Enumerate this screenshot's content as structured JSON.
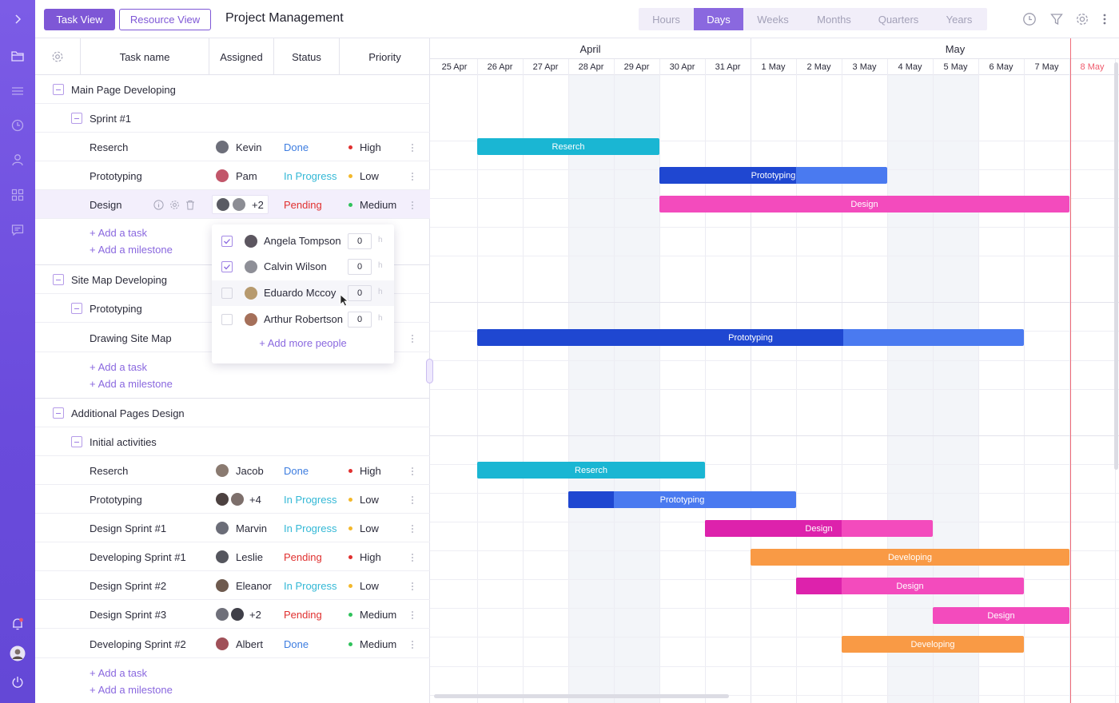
{
  "topbar": {
    "task_view": "Task View",
    "resource_view": "Resource View",
    "title": "Project Management",
    "scales": [
      "Hours",
      "Days",
      "Weeks",
      "Months",
      "Quarters",
      "Years"
    ],
    "active_scale": "Days"
  },
  "columns": {
    "task_name": "Task name",
    "assigned": "Assigned",
    "status": "Status",
    "priority": "Priority"
  },
  "groups": {
    "g1": "Main Page Developing",
    "g1_sub": "Sprint #1",
    "g2": "Site Map Developing",
    "g2_sub": "Prototyping",
    "g3": "Additional Pages Design",
    "g3_sub": "Initial activities"
  },
  "tasks": [
    {
      "name": "Reserch",
      "assignee": "Kevin",
      "status": "Done",
      "priority": "High"
    },
    {
      "name": "Prototyping",
      "assignee": "Pam",
      "status": "In Progress",
      "priority": "Low"
    },
    {
      "name": "Design",
      "assignee": "+2",
      "status": "Pending",
      "priority": "Medium"
    },
    {
      "name": "Drawing Site Map"
    },
    {
      "name": "Reserch",
      "assignee": "Jacob",
      "status": "Done",
      "priority": "High"
    },
    {
      "name": "Prototyping",
      "assignee": "+4",
      "status": "In Progress",
      "priority": "Low"
    },
    {
      "name": "Design Sprint #1",
      "assignee": "Marvin",
      "status": "In Progress",
      "priority": "Low"
    },
    {
      "name": "Developing Sprint #1",
      "assignee": "Leslie",
      "status": "Pending",
      "priority": "High"
    },
    {
      "name": "Design Sprint #2",
      "assignee": "Eleanor",
      "status": "In Progress",
      "priority": "Low"
    },
    {
      "name": "Design Sprint #3",
      "assignee": "+2",
      "status": "Pending",
      "priority": "Medium"
    },
    {
      "name": "Developing Sprint #2",
      "assignee": "Albert",
      "status": "Done",
      "priority": "Medium"
    }
  ],
  "links": {
    "add_task": "Add a task",
    "add_milestone": "Add a milestone",
    "plus": "+"
  },
  "popup": {
    "people": [
      {
        "name": "Angela Tompson",
        "checked": true,
        "hours": "0"
      },
      {
        "name": "Calvin Wilson",
        "checked": true,
        "hours": "0"
      },
      {
        "name": "Eduardo Mccoy",
        "checked": false,
        "hours": "0"
      },
      {
        "name": "Arthur Robertson",
        "checked": false,
        "hours": "0"
      }
    ],
    "unit": "h",
    "add_more": "+ Add more people"
  },
  "timeline": {
    "months": [
      "April",
      "May"
    ],
    "days": [
      "25 Apr",
      "26 Apr",
      "27 Apr",
      "28 Apr",
      "29 Apr",
      "30 Apr",
      "31 Apr",
      "1 May",
      "2 May",
      "3 May",
      "4 May",
      "5 May",
      "6 May",
      "7 May",
      "8 May"
    ],
    "today": "8 May",
    "bars": [
      {
        "label": "Reserch",
        "start": 1,
        "end": 5,
        "progress": 1.0,
        "color": "#1ab6d3",
        "dark": "#1ab6d3"
      },
      {
        "label": "Prototyping",
        "start": 5,
        "end": 10,
        "progress": 0.6,
        "color": "#4a7af0",
        "dark": "#1f47d1"
      },
      {
        "label": "Design",
        "start": 5,
        "end": 14,
        "progress": 0,
        "color": "#f34bbd",
        "dark": "#f34bbd"
      },
      {
        "label": "Prototyping",
        "start": 1,
        "end": 13,
        "progress": 0.67,
        "color": "#4a7af0",
        "dark": "#1f47d1"
      },
      {
        "label": "Reserch",
        "start": 1,
        "end": 6,
        "progress": 1.0,
        "color": "#1ab6d3",
        "dark": "#1ab6d3"
      },
      {
        "label": "Prototyping",
        "start": 3,
        "end": 8,
        "progress": 0.2,
        "color": "#4a7af0",
        "dark": "#1f47d1"
      },
      {
        "label": "Design",
        "start": 6,
        "end": 11,
        "progress": 0.6,
        "color": "#f34bbd",
        "dark": "#dd22ac"
      },
      {
        "label": "Developing",
        "start": 7,
        "end": 14,
        "progress": 0,
        "color": "#f99a45",
        "dark": "#f99a45"
      },
      {
        "label": "Design",
        "start": 8,
        "end": 13,
        "progress": 0.2,
        "color": "#f34bbd",
        "dark": "#dd22ac"
      },
      {
        "label": "Design",
        "start": 11,
        "end": 14,
        "progress": 0,
        "color": "#f34bbd",
        "dark": "#f34bbd"
      },
      {
        "label": "Developing",
        "start": 9,
        "end": 13,
        "progress": 0,
        "color": "#f99a45",
        "dark": "#f99a45"
      }
    ]
  },
  "colors": {
    "accent": "#7e57d6",
    "done": "#3d7de0",
    "in_progress": "#33b8d6",
    "pending": "#e0302f",
    "high": "#e0302f",
    "low": "#f3b82b",
    "medium": "#2fc25b"
  }
}
